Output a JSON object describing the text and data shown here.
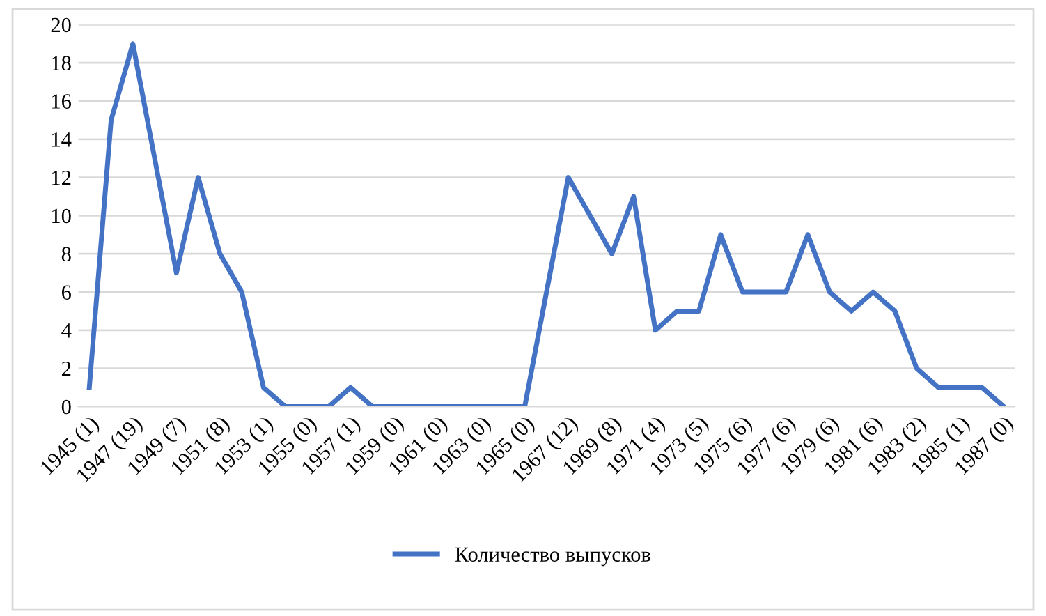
{
  "chart_data": {
    "type": "line",
    "categories": [
      "1945 (1)",
      null,
      "1947 (19)",
      null,
      "1949 (7)",
      null,
      "1951 (8)",
      null,
      "1953 (1)",
      null,
      "1955 (0)",
      null,
      "1957 (1)",
      null,
      "1959 (0)",
      null,
      "1961 (0)",
      null,
      "1963 (0)",
      null,
      "1965 (0)",
      null,
      "1967 (12)",
      null,
      "1969 (8)",
      null,
      "1971 (4)",
      null,
      "1973 (5)",
      null,
      "1975 (6)",
      null,
      "1977 (6)",
      null,
      "1979 (6)",
      null,
      "1981 (6)",
      null,
      "1983 (2)",
      null,
      "1985 (1)",
      null,
      "1987 (0)"
    ],
    "series": [
      {
        "name": "Количество выпусков",
        "color": "#4472c4",
        "values": [
          1,
          15,
          19,
          13,
          7,
          12,
          8,
          6,
          1,
          0,
          0,
          0,
          1,
          0,
          0,
          0,
          0,
          0,
          0,
          0,
          0,
          6,
          12,
          10,
          8,
          11,
          4,
          5,
          5,
          9,
          6,
          6,
          6,
          9,
          6,
          5,
          6,
          5,
          2,
          1,
          1,
          1,
          0
        ]
      }
    ],
    "ylim": [
      0,
      20
    ],
    "yticks": [
      0,
      2,
      4,
      6,
      8,
      10,
      12,
      14,
      16,
      18,
      20
    ],
    "grid": "y",
    "legend": "bottom",
    "marker": "none",
    "line_style": "solid"
  }
}
